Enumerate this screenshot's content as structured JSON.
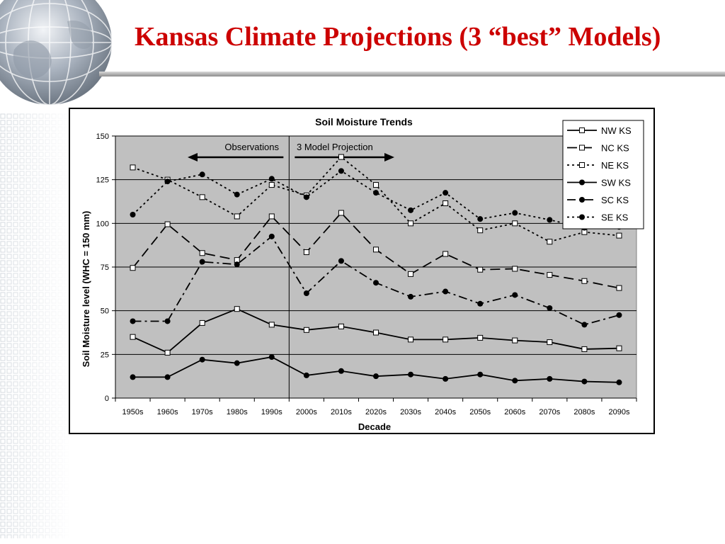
{
  "slide": {
    "title": "Kansas Climate Projections (3 “best” Models)",
    "accent_color": "#cc0000"
  },
  "chart_data": {
    "type": "line",
    "title": "Soil Moisture Trends",
    "xlabel": "Decade",
    "ylabel": "Soil Moisture level (WHC = 150 mm)",
    "ylim": [
      0,
      150
    ],
    "yticks": [
      0,
      25,
      50,
      75,
      100,
      125,
      150
    ],
    "plot_background": "#c0c0c0",
    "grid": true,
    "legend_position": "top-right",
    "categories": [
      "1950s",
      "1960s",
      "1970s",
      "1980s",
      "1990s",
      "2000s",
      "2010s",
      "2020s",
      "2030s",
      "2040s",
      "2050s",
      "2060s",
      "2070s",
      "2080s",
      "2090s"
    ],
    "annotations": {
      "observations_label": "Observations",
      "projection_label": "3 Model Projection"
    },
    "series": [
      {
        "name": "NW KS",
        "marker": "square-open",
        "line": "solid",
        "values": [
          35,
          26,
          43,
          51,
          42,
          39,
          41,
          37.5,
          33.5,
          33.5,
          34.5,
          33,
          32,
          28,
          28.5
        ]
      },
      {
        "name": "NC KS",
        "marker": "square-open",
        "line": "long-dash",
        "values": [
          74.5,
          99.5,
          83,
          79,
          104,
          83.5,
          106,
          85,
          71,
          82.5,
          73.5,
          74,
          70.5,
          67,
          63
        ]
      },
      {
        "name": "NE KS",
        "marker": "square-open",
        "line": "dotted",
        "values": [
          132,
          125,
          115,
          104,
          122,
          116,
          138,
          122,
          100,
          111.5,
          96,
          100,
          89.5,
          95,
          93
        ]
      },
      {
        "name": "SW KS",
        "marker": "circle-filled",
        "line": "solid",
        "values": [
          12,
          12,
          22,
          20,
          23.5,
          13,
          15.5,
          12.5,
          13.5,
          11,
          13.5,
          10,
          11,
          9.5,
          9
        ]
      },
      {
        "name": "SC KS",
        "marker": "circle-filled",
        "line": "dash-dot",
        "values": [
          44,
          44,
          78,
          76.5,
          92.5,
          60,
          78.5,
          66,
          58,
          61,
          54,
          59,
          51.5,
          42,
          47.5
        ]
      },
      {
        "name": "SE KS",
        "marker": "circle-filled",
        "line": "dotted",
        "values": [
          105,
          124,
          128,
          116.5,
          125.5,
          115,
          130,
          117.5,
          107.5,
          117.5,
          102.5,
          106,
          102,
          97.5,
          98
        ]
      }
    ]
  }
}
